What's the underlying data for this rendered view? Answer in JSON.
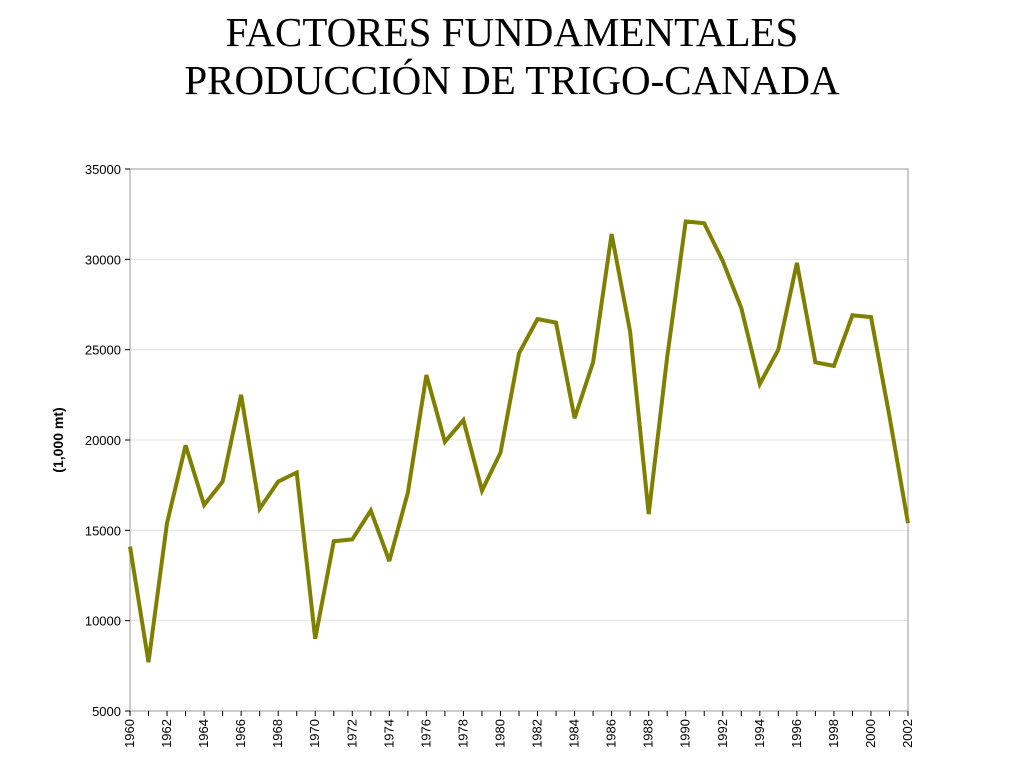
{
  "slide": {
    "title_line1": "FACTORES FUNDAMENTALES",
    "title_line2": "PRODUCCIÓN DE TRIGO-CANADA"
  },
  "chart_data": {
    "type": "line",
    "title": "FACTORES FUNDAMENTALES PRODUCCIÓN DE TRIGO-CANADA",
    "xlabel": "",
    "ylabel": "(1,000 mt)",
    "ylim": [
      5000,
      35000
    ],
    "yticks": [
      5000,
      10000,
      15000,
      20000,
      25000,
      30000,
      35000
    ],
    "xlim": [
      1960,
      2002
    ],
    "xticks": [
      1960,
      1962,
      1964,
      1966,
      1968,
      1970,
      1972,
      1974,
      1976,
      1978,
      1980,
      1982,
      1984,
      1986,
      1988,
      1990,
      1992,
      1994,
      1996,
      1998,
      2000,
      2002
    ],
    "grid": "horizontal",
    "legend": "none",
    "color": "#808000",
    "x": [
      1960,
      1961,
      1962,
      1963,
      1964,
      1965,
      1966,
      1967,
      1968,
      1969,
      1970,
      1971,
      1972,
      1973,
      1974,
      1975,
      1976,
      1977,
      1978,
      1979,
      1980,
      1981,
      1982,
      1983,
      1984,
      1985,
      1986,
      1987,
      1988,
      1989,
      1990,
      1991,
      1992,
      1993,
      1994,
      1995,
      1996,
      1997,
      1998,
      1999,
      2000,
      2001,
      2002
    ],
    "y": [
      14100,
      7700,
      15400,
      19700,
      16400,
      17700,
      22500,
      16200,
      17700,
      18200,
      9000,
      14400,
      14500,
      16100,
      13300,
      17100,
      23600,
      19900,
      21100,
      17200,
      19300,
      24800,
      26700,
      26500,
      21200,
      24300,
      31400,
      26000,
      15900,
      24600,
      32100,
      32000,
      29900,
      27300,
      23100,
      25000,
      29800,
      24300,
      24100,
      26900,
      26800,
      21300,
      15400
    ]
  }
}
